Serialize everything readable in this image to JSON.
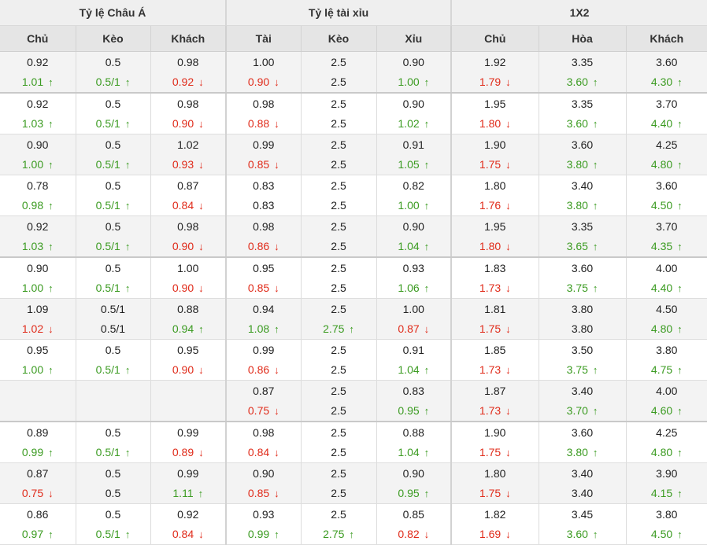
{
  "headers": {
    "groups": [
      "Tỷ lệ Châu Á",
      "Tỷ lệ tài xỉu",
      "1X2"
    ],
    "columns": [
      "Chủ",
      "Kèo",
      "Khách",
      "Tài",
      "Kèo",
      "Xỉu",
      "Chủ",
      "Hòa",
      "Khách"
    ]
  },
  "rows": [
    {
      "cells": [
        {
          "o": "0.92",
          "n": "1.01",
          "t": "up"
        },
        {
          "o": "0.5",
          "n": "0.5/1",
          "t": "up"
        },
        {
          "o": "0.98",
          "n": "0.92",
          "t": "down"
        },
        {
          "o": "1.00",
          "n": "0.90",
          "t": "down"
        },
        {
          "o": "2.5",
          "n": "2.5",
          "t": ""
        },
        {
          "o": "0.90",
          "n": "1.00",
          "t": "up"
        },
        {
          "o": "1.92",
          "n": "1.79",
          "t": "down"
        },
        {
          "o": "3.35",
          "n": "3.60",
          "t": "up"
        },
        {
          "o": "3.60",
          "n": "4.30",
          "t": "up"
        }
      ]
    },
    {
      "cells": [
        {
          "o": "0.92",
          "n": "1.03",
          "t": "up"
        },
        {
          "o": "0.5",
          "n": "0.5/1",
          "t": "up"
        },
        {
          "o": "0.98",
          "n": "0.90",
          "t": "down"
        },
        {
          "o": "0.98",
          "n": "0.88",
          "t": "down"
        },
        {
          "o": "2.5",
          "n": "2.5",
          "t": ""
        },
        {
          "o": "0.90",
          "n": "1.02",
          "t": "up"
        },
        {
          "o": "1.95",
          "n": "1.80",
          "t": "down"
        },
        {
          "o": "3.35",
          "n": "3.60",
          "t": "up"
        },
        {
          "o": "3.70",
          "n": "4.40",
          "t": "up"
        }
      ]
    },
    {
      "cells": [
        {
          "o": "0.90",
          "n": "1.00",
          "t": "up"
        },
        {
          "o": "0.5",
          "n": "0.5/1",
          "t": "up"
        },
        {
          "o": "1.02",
          "n": "0.93",
          "t": "down"
        },
        {
          "o": "0.99",
          "n": "0.85",
          "t": "down"
        },
        {
          "o": "2.5",
          "n": "2.5",
          "t": ""
        },
        {
          "o": "0.91",
          "n": "1.05",
          "t": "up"
        },
        {
          "o": "1.90",
          "n": "1.75",
          "t": "down"
        },
        {
          "o": "3.60",
          "n": "3.80",
          "t": "up"
        },
        {
          "o": "4.25",
          "n": "4.80",
          "t": "up"
        }
      ]
    },
    {
      "cells": [
        {
          "o": "0.78",
          "n": "0.98",
          "t": "up"
        },
        {
          "o": "0.5",
          "n": "0.5/1",
          "t": "up"
        },
        {
          "o": "0.87",
          "n": "0.84",
          "t": "down"
        },
        {
          "o": "0.83",
          "n": "0.83",
          "t": ""
        },
        {
          "o": "2.5",
          "n": "2.5",
          "t": ""
        },
        {
          "o": "0.82",
          "n": "1.00",
          "t": "up"
        },
        {
          "o": "1.80",
          "n": "1.76",
          "t": "down"
        },
        {
          "o": "3.40",
          "n": "3.80",
          "t": "up"
        },
        {
          "o": "3.60",
          "n": "4.50",
          "t": "up"
        }
      ]
    },
    {
      "cells": [
        {
          "o": "0.92",
          "n": "1.03",
          "t": "up"
        },
        {
          "o": "0.5",
          "n": "0.5/1",
          "t": "up"
        },
        {
          "o": "0.98",
          "n": "0.90",
          "t": "down"
        },
        {
          "o": "0.98",
          "n": "0.86",
          "t": "down"
        },
        {
          "o": "2.5",
          "n": "2.5",
          "t": ""
        },
        {
          "o": "0.90",
          "n": "1.04",
          "t": "up"
        },
        {
          "o": "1.95",
          "n": "1.80",
          "t": "down"
        },
        {
          "o": "3.35",
          "n": "3.65",
          "t": "up"
        },
        {
          "o": "3.70",
          "n": "4.35",
          "t": "up"
        }
      ]
    },
    {
      "cells": [
        {
          "o": "0.90",
          "n": "1.00",
          "t": "up"
        },
        {
          "o": "0.5",
          "n": "0.5/1",
          "t": "up"
        },
        {
          "o": "1.00",
          "n": "0.90",
          "t": "down"
        },
        {
          "o": "0.95",
          "n": "0.85",
          "t": "down"
        },
        {
          "o": "2.5",
          "n": "2.5",
          "t": ""
        },
        {
          "o": "0.93",
          "n": "1.06",
          "t": "up"
        },
        {
          "o": "1.83",
          "n": "1.73",
          "t": "down"
        },
        {
          "o": "3.60",
          "n": "3.75",
          "t": "up"
        },
        {
          "o": "4.00",
          "n": "4.40",
          "t": "up"
        }
      ]
    },
    {
      "cells": [
        {
          "o": "1.09",
          "n": "1.02",
          "t": "down"
        },
        {
          "o": "0.5/1",
          "n": "0.5/1",
          "t": ""
        },
        {
          "o": "0.88",
          "n": "0.94",
          "t": "up"
        },
        {
          "o": "0.94",
          "n": "1.08",
          "t": "up"
        },
        {
          "o": "2.5",
          "n": "2.75",
          "t": "up"
        },
        {
          "o": "1.00",
          "n": "0.87",
          "t": "down"
        },
        {
          "o": "1.81",
          "n": "1.75",
          "t": "down"
        },
        {
          "o": "3.80",
          "n": "3.80",
          "t": ""
        },
        {
          "o": "4.50",
          "n": "4.80",
          "t": "up"
        }
      ]
    },
    {
      "cells": [
        {
          "o": "0.95",
          "n": "1.00",
          "t": "up"
        },
        {
          "o": "0.5",
          "n": "0.5/1",
          "t": "up"
        },
        {
          "o": "0.95",
          "n": "0.90",
          "t": "down"
        },
        {
          "o": "0.99",
          "n": "0.86",
          "t": "down"
        },
        {
          "o": "2.5",
          "n": "2.5",
          "t": ""
        },
        {
          "o": "0.91",
          "n": "1.04",
          "t": "up"
        },
        {
          "o": "1.85",
          "n": "1.73",
          "t": "down"
        },
        {
          "o": "3.50",
          "n": "3.75",
          "t": "up"
        },
        {
          "o": "3.80",
          "n": "4.75",
          "t": "up"
        }
      ]
    },
    {
      "cells": [
        {
          "o": "",
          "n": "",
          "t": ""
        },
        {
          "o": "",
          "n": "",
          "t": ""
        },
        {
          "o": "",
          "n": "",
          "t": ""
        },
        {
          "o": "0.87",
          "n": "0.75",
          "t": "down"
        },
        {
          "o": "2.5",
          "n": "2.5",
          "t": ""
        },
        {
          "o": "0.83",
          "n": "0.95",
          "t": "up"
        },
        {
          "o": "1.87",
          "n": "1.73",
          "t": "down"
        },
        {
          "o": "3.40",
          "n": "3.70",
          "t": "up"
        },
        {
          "o": "4.00",
          "n": "4.60",
          "t": "up"
        }
      ]
    },
    {
      "cells": [
        {
          "o": "0.89",
          "n": "0.99",
          "t": "up"
        },
        {
          "o": "0.5",
          "n": "0.5/1",
          "t": "up"
        },
        {
          "o": "0.99",
          "n": "0.89",
          "t": "down"
        },
        {
          "o": "0.98",
          "n": "0.84",
          "t": "down"
        },
        {
          "o": "2.5",
          "n": "2.5",
          "t": ""
        },
        {
          "o": "0.88",
          "n": "1.04",
          "t": "up"
        },
        {
          "o": "1.90",
          "n": "1.75",
          "t": "down"
        },
        {
          "o": "3.60",
          "n": "3.80",
          "t": "up"
        },
        {
          "o": "4.25",
          "n": "4.80",
          "t": "up"
        }
      ]
    },
    {
      "cells": [
        {
          "o": "0.87",
          "n": "0.75",
          "t": "down"
        },
        {
          "o": "0.5",
          "n": "0.5",
          "t": ""
        },
        {
          "o": "0.99",
          "n": "1.11",
          "t": "up"
        },
        {
          "o": "0.90",
          "n": "0.85",
          "t": "down"
        },
        {
          "o": "2.5",
          "n": "2.5",
          "t": ""
        },
        {
          "o": "0.90",
          "n": "0.95",
          "t": "up"
        },
        {
          "o": "1.80",
          "n": "1.75",
          "t": "down"
        },
        {
          "o": "3.40",
          "n": "3.40",
          "t": ""
        },
        {
          "o": "3.90",
          "n": "4.15",
          "t": "up"
        }
      ]
    },
    {
      "cells": [
        {
          "o": "0.86",
          "n": "0.97",
          "t": "up"
        },
        {
          "o": "0.5",
          "n": "0.5/1",
          "t": "up"
        },
        {
          "o": "0.92",
          "n": "0.84",
          "t": "down"
        },
        {
          "o": "0.93",
          "n": "0.99",
          "t": "up"
        },
        {
          "o": "2.5",
          "n": "2.75",
          "t": "up"
        },
        {
          "o": "0.85",
          "n": "0.82",
          "t": "down"
        },
        {
          "o": "1.82",
          "n": "1.69",
          "t": "down"
        },
        {
          "o": "3.45",
          "n": "3.60",
          "t": "up"
        },
        {
          "o": "3.80",
          "n": "4.50",
          "t": "up"
        }
      ]
    }
  ],
  "arrows": {
    "up": "↑",
    "down": "↓"
  },
  "colors": {
    "up": "#3b9b21",
    "down": "#e02b1a",
    "header_bg": "#efefef",
    "subheader_bg": "#e5e5e5",
    "alt_row_bg": "#f3f3f3"
  }
}
